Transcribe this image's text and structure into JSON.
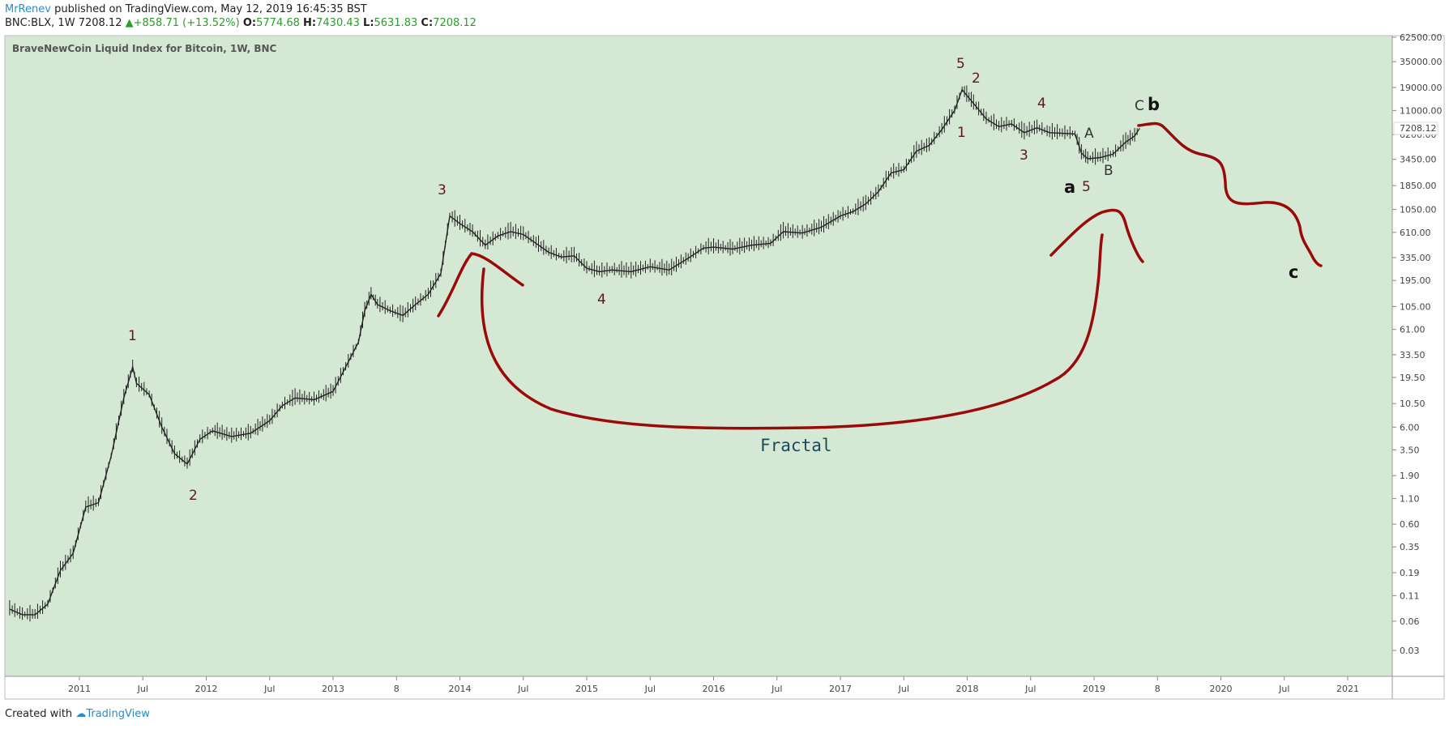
{
  "header": {
    "author": "MrRenev",
    "published": " published on TradingView.com, May 12, 2019 16:45:35 BST",
    "symbol": "BNC:BLX, 1W",
    "last": "7208.12",
    "change": "+858.71 (+13.52%)",
    "o_label": "O:",
    "o_value": "5774.68",
    "h_label": "H:",
    "h_value": "7430.43",
    "l_label": "L:",
    "l_value": "5631.83",
    "c_label": "C:",
    "c_value": "7208.12",
    "up_icon": "triangle-up-icon"
  },
  "footer": {
    "prefix": "Created with",
    "brand": "TradingView",
    "logo_icon": "tradingview-logo-icon"
  },
  "chart_data": {
    "type": "line",
    "title": "BraveNewCoin Liquid Index for Bitcoin, 1W, BNC",
    "y_scale": "log",
    "y_ticks": [
      "62500.00",
      "35000.00",
      "19000.00",
      "11000.00",
      "6200.00",
      "3450.00",
      "1850.00",
      "1050.00",
      "610.00",
      "335.00",
      "195.00",
      "105.00",
      "61.00",
      "33.50",
      "19.50",
      "10.50",
      "6.00",
      "3.50",
      "1.90",
      "1.10",
      "0.60",
      "0.35",
      "0.19",
      "0.11",
      "0.06",
      "0.03"
    ],
    "y_tick_values": [
      62500,
      35000,
      19000,
      11000,
      6200,
      3450,
      1850,
      1050,
      610,
      335,
      195,
      105,
      61,
      33.5,
      19.5,
      10.5,
      6,
      3.5,
      1.9,
      1.1,
      0.6,
      0.35,
      0.19,
      0.11,
      0.06,
      0.03
    ],
    "x_ticks": [
      "2011",
      "Jul",
      "2012",
      "Jul",
      "2013",
      "8",
      "2014",
      "Jul",
      "2015",
      "Jul",
      "2016",
      "Jul",
      "2017",
      "Jul",
      "2018",
      "Jul",
      "2019",
      "8",
      "2020",
      "Jul",
      "2021"
    ],
    "x_tick_values": [
      2011,
      2011.5,
      2012,
      2012.5,
      2013,
      2013.5,
      2014,
      2014.5,
      2015,
      2015.5,
      2016,
      2016.5,
      2017,
      2017.5,
      2018,
      2018.5,
      2019,
      2019.5,
      2020,
      2020.5,
      2021
    ],
    "current_price_label": "7208.12",
    "current_price": 7208.12,
    "series": [
      {
        "x": [
          2010.45,
          2010.55,
          2010.65,
          2010.75,
          2010.85,
          2010.95,
          2011.05,
          2011.15,
          2011.25,
          2011.35,
          2011.42,
          2011.45,
          2011.55,
          2011.65,
          2011.75,
          2011.85,
          2011.95,
          2012.05,
          2012.2,
          2012.35,
          2012.5,
          2012.6,
          2012.7,
          2012.85,
          2013.0,
          2013.1,
          2013.2,
          2013.25,
          2013.3,
          2013.35,
          2013.45,
          2013.55,
          2013.65,
          2013.75,
          2013.85,
          2013.92,
          2014.0,
          2014.1,
          2014.2,
          2014.3,
          2014.4,
          2014.5,
          2014.6,
          2014.7,
          2014.8,
          2014.9,
          2015.0,
          2015.1,
          2015.2,
          2015.35,
          2015.5,
          2015.65,
          2015.8,
          2015.92,
          2016.0,
          2016.15,
          2016.3,
          2016.45,
          2016.55,
          2016.7,
          2016.85,
          2017.0,
          2017.1,
          2017.2,
          2017.3,
          2017.4,
          2017.5,
          2017.6,
          2017.7,
          2017.8,
          2017.9,
          2017.96,
          2018.05,
          2018.15,
          2018.25,
          2018.35,
          2018.45,
          2018.55,
          2018.65,
          2018.75,
          2018.85,
          2018.9,
          2018.95,
          2019.05,
          2019.15,
          2019.25,
          2019.32,
          2019.36
        ],
        "y": [
          0.08,
          0.07,
          0.07,
          0.09,
          0.2,
          0.3,
          0.9,
          1.0,
          3.0,
          12.0,
          25.0,
          17.0,
          13.0,
          6.0,
          3.2,
          2.5,
          4.5,
          5.5,
          4.8,
          5.2,
          7.0,
          10.0,
          12.0,
          11.5,
          14.0,
          25.0,
          45.0,
          95.0,
          140.0,
          110.0,
          95.0,
          85.0,
          110.0,
          140.0,
          230.0,
          900.0,
          750.0,
          620.0,
          450.0,
          560.0,
          620.0,
          580.0,
          470.0,
          380.0,
          340.0,
          350.0,
          260.0,
          240.0,
          250.0,
          240.0,
          270.0,
          250.0,
          330.0,
          420.0,
          430.0,
          410.0,
          450.0,
          470.0,
          620.0,
          600.0,
          690.0,
          900.0,
          1000.0,
          1200.0,
          1600.0,
          2500.0,
          2700.0,
          4200.0,
          4800.0,
          7000.0,
          11000.0,
          18000.0,
          13000.0,
          9000.0,
          7500.0,
          8000.0,
          6500.0,
          7300.0,
          6500.0,
          6400.0,
          6300.0,
          4000.0,
          3500.0,
          3600.0,
          3900.0,
          5200.0,
          6000.0,
          7208.12
        ]
      }
    ],
    "annotations": {
      "wave_labels": [
        "1",
        "2",
        "3",
        "4",
        "5",
        "2",
        "1",
        "3",
        "4",
        "5"
      ],
      "abc_labels": [
        "A",
        "B",
        "C"
      ],
      "big_labels": [
        "a",
        "b",
        "c"
      ],
      "fractal_label": "Fractal"
    }
  },
  "colors": {
    "background": "#d5e8d4",
    "border": "#bbb",
    "projection": "#9a0a0a",
    "price": "#222"
  }
}
